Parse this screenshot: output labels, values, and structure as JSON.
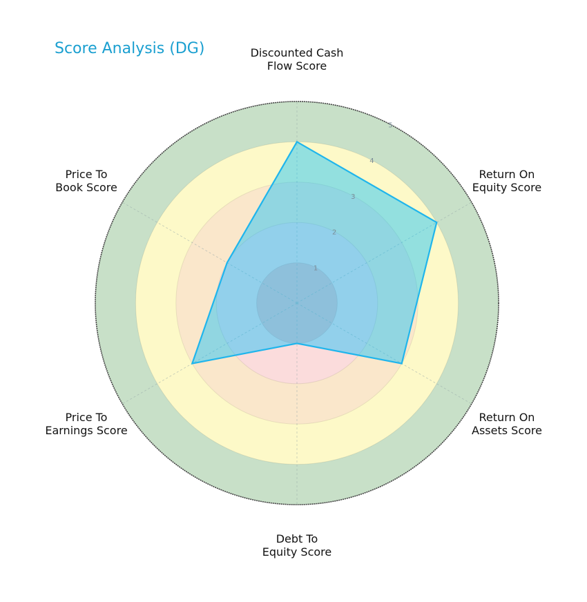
{
  "title": "Score Analysis (DG)",
  "colors": {
    "title": "#1a9fd0",
    "polygon_stroke": "#1fb5ec",
    "polygon_fill": "#00bfff",
    "ring_1": "#f4c2c2",
    "ring_2": "#fbdcdc",
    "ring_3": "#fae7cb",
    "ring_4": "#fdf9c8",
    "ring_5": "#c8e0c8"
  },
  "axes": [
    {
      "line1": "Discounted Cash",
      "line2": "Flow Score"
    },
    {
      "line1": "Return On",
      "line2": "Equity Score"
    },
    {
      "line1": "Return On",
      "line2": "Assets Score"
    },
    {
      "line1": "Debt To",
      "line2": "Equity Score"
    },
    {
      "line1": "Price To",
      "line2": "Earnings Score"
    },
    {
      "line1": "Price To",
      "line2": "Book Score"
    }
  ],
  "ticks": [
    "1",
    "2",
    "3",
    "4",
    "5"
  ],
  "chart_data": {
    "type": "radar",
    "title": "Score Analysis (DG)",
    "categories": [
      "Discounted Cash Flow Score",
      "Return On Equity Score",
      "Return On Assets Score",
      "Debt To Equity Score",
      "Price To Earnings Score",
      "Price To Book Score"
    ],
    "series": [
      {
        "name": "DG",
        "values": [
          4,
          4,
          3,
          1,
          3,
          2
        ]
      }
    ],
    "rlim": [
      0,
      5
    ],
    "rticks": [
      1,
      2,
      3,
      4,
      5
    ],
    "background_bands": [
      {
        "from": 0,
        "to": 1,
        "color": "#f4c2c2"
      },
      {
        "from": 1,
        "to": 2,
        "color": "#fbdcdc"
      },
      {
        "from": 2,
        "to": 3,
        "color": "#fae7cb"
      },
      {
        "from": 3,
        "to": 4,
        "color": "#fdf9c8"
      },
      {
        "from": 4,
        "to": 5,
        "color": "#c8e0c8"
      }
    ],
    "grid": true
  }
}
